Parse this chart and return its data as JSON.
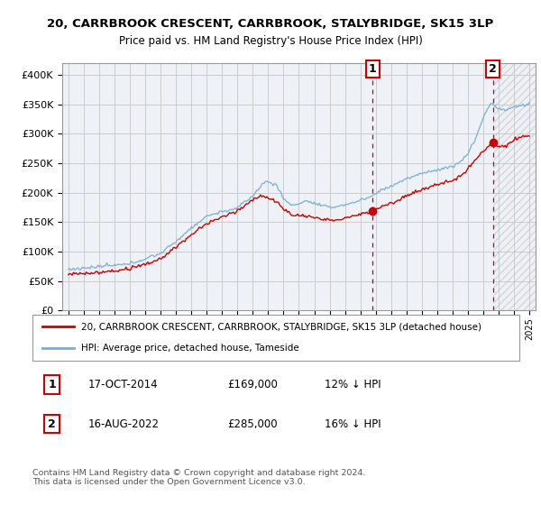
{
  "title": "20, CARRBROOK CRESCENT, CARRBROOK, STALYBRIDGE, SK15 3LP",
  "subtitle": "Price paid vs. HM Land Registry's House Price Index (HPI)",
  "ylim": [
    0,
    420000
  ],
  "yticks": [
    0,
    50000,
    100000,
    150000,
    200000,
    250000,
    300000,
    350000,
    400000
  ],
  "legend_line1": "20, CARRBROOK CRESCENT, CARRBROOK, STALYBRIDGE, SK15 3LP (detached house)",
  "legend_line2": "HPI: Average price, detached house, Tameside",
  "annotation1_date": "17-OCT-2014",
  "annotation1_price": "£169,000",
  "annotation1_hpi": "12% ↓ HPI",
  "annotation2_date": "16-AUG-2022",
  "annotation2_price": "£285,000",
  "annotation2_hpi": "16% ↓ HPI",
  "footer": "Contains HM Land Registry data © Crown copyright and database right 2024.\nThis data is licensed under the Open Government Licence v3.0.",
  "hpi_color": "#7aadd4",
  "price_color": "#cc0000",
  "annotation_color": "#cc0000",
  "grid_color": "#cccccc",
  "background_color": "#ffffff",
  "plot_bg_color": "#eef2f7",
  "sale1_year": 2014.79,
  "sale1_price": 169000,
  "sale2_year": 2022.62,
  "sale2_price": 285000,
  "xlim_left": 1994.6,
  "xlim_right": 2025.4
}
